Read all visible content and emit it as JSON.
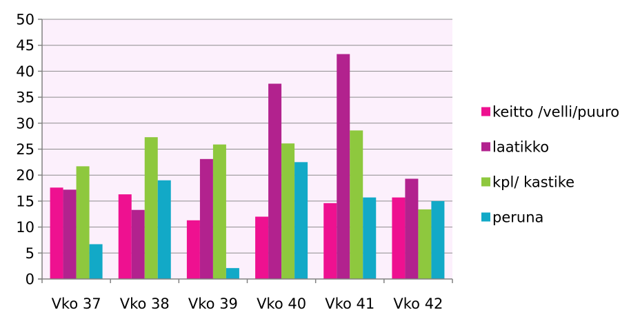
{
  "chart_data": {
    "type": "bar",
    "title": "",
    "xlabel": "",
    "ylabel": "",
    "ylim": [
      0,
      50
    ],
    "yticks": [
      0,
      5,
      10,
      15,
      20,
      25,
      30,
      35,
      40,
      45,
      50
    ],
    "grid": true,
    "legend_position": "right",
    "plot_background": "#fcf0fc",
    "categories": [
      "Vko 37",
      "Vko 38",
      "Vko 39",
      "Vko 40",
      "Vko 41",
      "Vko 42"
    ],
    "series": [
      {
        "name": "keitto /velli/puuro",
        "color": "#ee1190",
        "values": [
          17.6,
          16.3,
          11.3,
          12.0,
          14.6,
          15.7
        ]
      },
      {
        "name": "laatikko",
        "color": "#b2228e",
        "values": [
          17.2,
          13.3,
          23.1,
          37.6,
          43.3,
          19.3
        ]
      },
      {
        "name": "kpl/ kastike",
        "color": "#8ec83e",
        "values": [
          21.7,
          27.3,
          25.9,
          26.1,
          28.6,
          13.4
        ]
      },
      {
        "name": "peruna",
        "color": "#12a9c7",
        "values": [
          6.7,
          19.0,
          2.1,
          22.5,
          15.7,
          15.0
        ]
      }
    ]
  }
}
